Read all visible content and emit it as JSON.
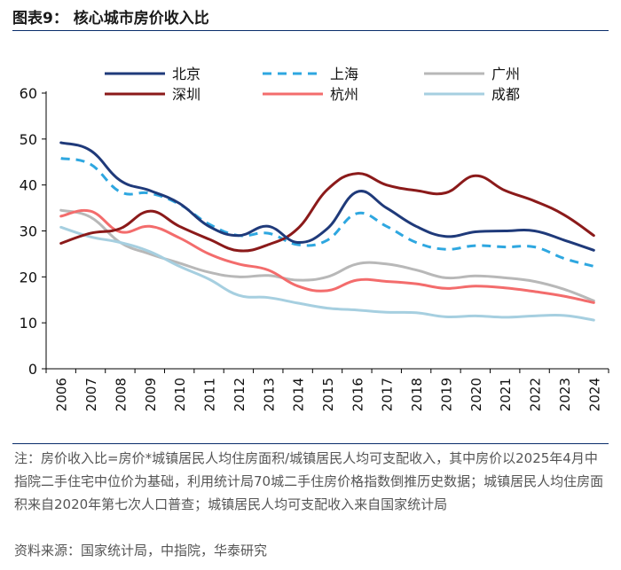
{
  "header": {
    "title": "图表9：  核心城市房价收入比"
  },
  "chart_data": {
    "type": "line",
    "title": "核心城市房价收入比",
    "xlabel": "",
    "ylabel": "",
    "ylim": [
      0,
      60
    ],
    "yticks": [
      0,
      10,
      20,
      30,
      40,
      50,
      60
    ],
    "categories": [
      "2006",
      "2007",
      "2008",
      "2009",
      "2010",
      "2011",
      "2012",
      "2013",
      "2014",
      "2015",
      "2016",
      "2017",
      "2018",
      "2019",
      "2020",
      "2021",
      "2022",
      "2023",
      "2024"
    ],
    "grid": false,
    "legend_position": "top",
    "series": [
      {
        "name": "北京",
        "color": "#1f3a7a",
        "style": "solid",
        "values": [
          49.2,
          47.5,
          41.0,
          38.8,
          36.0,
          31.0,
          29.0,
          31.0,
          27.5,
          30.5,
          38.5,
          35.0,
          31.0,
          28.8,
          29.8,
          30.0,
          30.0,
          28.0,
          25.8
        ]
      },
      {
        "name": "上海",
        "color": "#2ea7e0",
        "style": "dashed",
        "values": [
          45.8,
          44.5,
          38.5,
          38.2,
          35.8,
          31.5,
          29.0,
          29.5,
          27.0,
          28.0,
          33.8,
          31.0,
          27.5,
          26.0,
          26.8,
          26.5,
          26.5,
          24.0,
          22.3
        ]
      },
      {
        "name": "广州",
        "color": "#b8b8b8",
        "style": "solid",
        "values": [
          34.5,
          33.0,
          27.5,
          25.0,
          23.0,
          21.0,
          20.0,
          20.3,
          19.3,
          20.0,
          22.8,
          22.8,
          21.5,
          19.8,
          20.2,
          19.8,
          19.0,
          17.3,
          14.8
        ]
      },
      {
        "name": "深圳",
        "color": "#8b1a1a",
        "style": "solid",
        "values": [
          27.3,
          29.5,
          30.5,
          34.3,
          31.0,
          28.2,
          25.7,
          27.0,
          30.5,
          39.0,
          42.5,
          40.0,
          38.8,
          38.3,
          42.0,
          38.8,
          36.5,
          33.5,
          29.0
        ]
      },
      {
        "name": "杭州",
        "color": "#f36c6c",
        "style": "solid",
        "values": [
          33.2,
          34.3,
          29.8,
          31.0,
          28.5,
          25.0,
          22.8,
          21.5,
          18.0,
          17.0,
          19.3,
          19.0,
          18.5,
          17.5,
          18.0,
          17.6,
          16.8,
          15.8,
          14.4
        ]
      },
      {
        "name": "成都",
        "color": "#a6cfe0",
        "style": "solid",
        "values": [
          30.8,
          28.7,
          27.5,
          25.5,
          22.3,
          19.5,
          16.0,
          15.5,
          14.3,
          13.2,
          12.8,
          12.3,
          12.2,
          11.3,
          11.5,
          11.2,
          11.5,
          11.6,
          10.6
        ]
      }
    ]
  },
  "footer": {
    "note": "注：房价收入比=房价*城镇居民人均住房面积/城镇居民人均可支配收入，其中房价以2025年4月中指院二手住宅中位价为基础，利用统计局70城二手住房价格指数倒推历史数据；城镇居民人均住房面积来自2020年第七次人口普查；城镇居民人均可支配收入来自国家统计局",
    "source": "资料来源：国家统计局，中指院，华泰研究"
  }
}
